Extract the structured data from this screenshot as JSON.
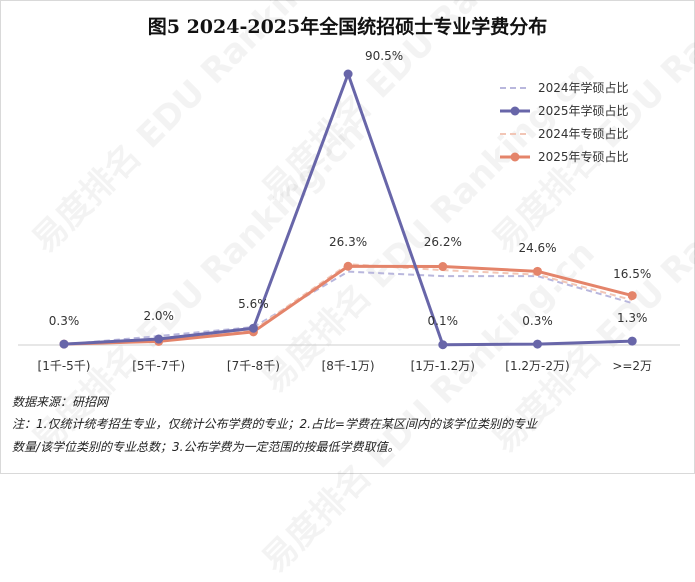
{
  "title": "图5 2024-2025年全国统招硕士专业学费分布",
  "watermark": "易度排名 EDU Ranking.cn",
  "source": "数据来源：研招网",
  "note_line1": "注：1.仅统计统考招生专业，仅统计公布学费的专业；2.占比=学费在某区间内的该学位类别的专业",
  "note_line2": "数量/该学位类别的专业总数；3.公布学费为一定范围的按最低学费取值。",
  "colors": {
    "master_2024": "#b9b7dd",
    "master_2025": "#6866a9",
    "prof_2024": "#f2c6b6",
    "prof_2025": "#e4846a"
  },
  "chart_data": {
    "type": "line",
    "categories": [
      "[1千-5千)",
      "[5千-7千)",
      "[7千-8千)",
      "[8千-1万)",
      "[1万-1.2万)",
      "[1.2万-2万)",
      ">=2万"
    ],
    "series": [
      {
        "name": "2024年学硕占比",
        "values": [
          0.2,
          3.0,
          6.0,
          24.5,
          23.0,
          23.0,
          14.0
        ],
        "style": "dashed",
        "color": "#b9b7dd"
      },
      {
        "name": "2025年学硕占比",
        "values": [
          0.3,
          2.0,
          5.6,
          90.5,
          0.1,
          0.3,
          1.3
        ],
        "style": "solid-marker",
        "color": "#6866a9"
      },
      {
        "name": "2024年专硕占比",
        "values": [
          0.3,
          1.8,
          5.0,
          27.0,
          25.0,
          23.5,
          15.0
        ],
        "style": "dashed",
        "color": "#f2c6b6"
      },
      {
        "name": "2025年专硕占比",
        "values": [
          0.3,
          1.2,
          4.4,
          26.3,
          26.2,
          24.6,
          16.5
        ],
        "style": "solid-marker",
        "color": "#e4846a"
      }
    ],
    "data_labels": [
      {
        "category": "[1千-5千)",
        "text": "0.3%"
      },
      {
        "category": "[5千-7千)",
        "text": "2.0%"
      },
      {
        "category": "[7千-8千)",
        "text": "5.6%"
      },
      {
        "category": "[8千-1万)",
        "text": "90.5%"
      },
      {
        "category": "[8千-1万)",
        "text": "26.3%"
      },
      {
        "category": "[1万-1.2万)",
        "text": "26.2%"
      },
      {
        "category": "[1万-1.2万)",
        "text": "0.1%"
      },
      {
        "category": "[1.2万-2万)",
        "text": "24.6%"
      },
      {
        "category": "[1.2万-2万)",
        "text": "0.3%"
      },
      {
        "category": ">=2万",
        "text": "16.5%"
      },
      {
        "category": ">=2万",
        "text": "1.3%"
      }
    ],
    "ylim": [
      0,
      100
    ],
    "grid": false,
    "legend_position": "top-right"
  }
}
